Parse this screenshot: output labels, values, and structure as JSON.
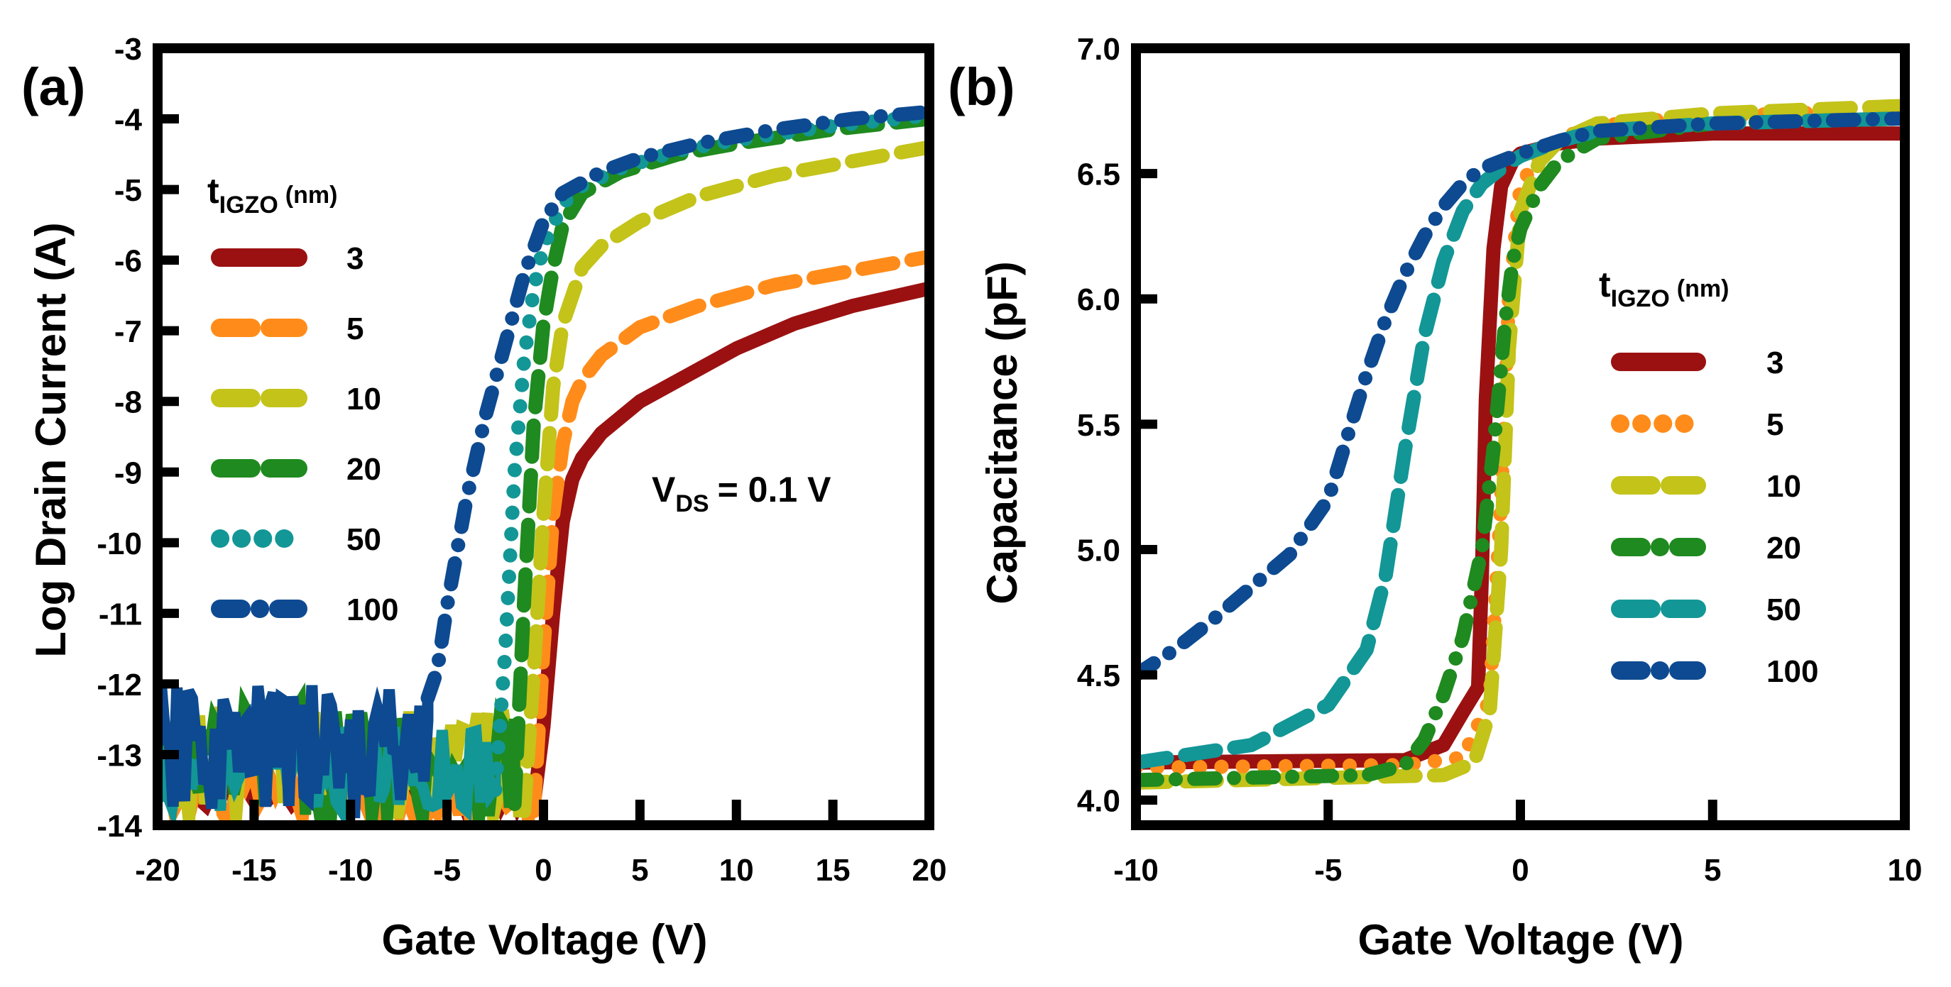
{
  "chart_data": [
    {
      "type": "line",
      "panel_label": "(a)",
      "xlabel": "Gate Voltage (V)",
      "ylabel": "Log Drain Current (A)",
      "xlim": [
        -20,
        20
      ],
      "ylim": [
        -14,
        -3
      ],
      "xticks": [
        "-20",
        "-15",
        "-10",
        "-5",
        "0",
        "5",
        "10",
        "15",
        "20"
      ],
      "yticks": [
        "-3",
        "-4",
        "-5",
        "-6",
        "-7",
        "-8",
        "-9",
        "-10",
        "-11",
        "-12",
        "-13",
        "-14"
      ],
      "legend_title": {
        "main": "t",
        "sub": "IGZO",
        "unit": "(nm)"
      },
      "legend_position": "top-left",
      "annotation": {
        "main": "V",
        "sub": "DS",
        "rest": "= 0.1 V"
      },
      "series": [
        {
          "name": "3",
          "color": "#9b1111",
          "style": "solid",
          "noise": [
            -13.75,
            -13.4
          ],
          "x": [
            -0.5,
            0,
            0.5,
            1,
            1.5,
            2,
            3,
            5,
            7,
            10,
            13,
            16,
            20
          ],
          "y": [
            -13.7,
            -12.6,
            -11.0,
            -9.7,
            -9.1,
            -8.8,
            -8.45,
            -8.0,
            -7.7,
            -7.25,
            -6.9,
            -6.65,
            -6.4
          ]
        },
        {
          "name": "5",
          "color": "#ff8c1a",
          "style": "dash",
          "noise": [
            -14.0,
            -13.3
          ],
          "x": [
            -0.5,
            0,
            0.5,
            1,
            1.5,
            2,
            3,
            5,
            8,
            12,
            16,
            20
          ],
          "y": [
            -13.8,
            -11.5,
            -9.6,
            -8.6,
            -8.0,
            -7.7,
            -7.35,
            -6.95,
            -6.65,
            -6.35,
            -6.15,
            -5.95
          ]
        },
        {
          "name": "10",
          "color": "#c3c31a",
          "style": "dash",
          "noise": [
            -14.0,
            -12.3
          ],
          "x": [
            -1,
            -0.5,
            0,
            0.5,
            1,
            2,
            3,
            5,
            8,
            12,
            16,
            20
          ],
          "y": [
            -13.8,
            -11.8,
            -9.6,
            -7.8,
            -6.9,
            -6.1,
            -5.8,
            -5.45,
            -5.1,
            -4.8,
            -4.6,
            -4.4
          ]
        },
        {
          "name": "20",
          "color": "#1f8a1f",
          "style": "dash",
          "noise": [
            -14.0,
            -12.2
          ],
          "x": [
            -1.5,
            -1,
            -0.5,
            0,
            0.5,
            1,
            2,
            4,
            7,
            10,
            15,
            20
          ],
          "y": [
            -13.7,
            -10.8,
            -8.3,
            -6.9,
            -6.1,
            -5.5,
            -5.05,
            -4.75,
            -4.5,
            -4.35,
            -4.15,
            -4.0
          ]
        },
        {
          "name": "50",
          "color": "#139696",
          "style": "dot",
          "noise": [
            -13.8,
            -12.6
          ],
          "x": [
            -2.5,
            -2,
            -1.5,
            -1,
            -0.5,
            0,
            1,
            2,
            4,
            7,
            10,
            15,
            20
          ],
          "y": [
            -13.5,
            -11.6,
            -9.0,
            -7.4,
            -6.4,
            -5.8,
            -5.2,
            -4.95,
            -4.7,
            -4.45,
            -4.3,
            -4.1,
            -3.95
          ]
        },
        {
          "name": "100",
          "color": "#0d4a91",
          "style": "dashdot",
          "noise": [
            -13.9,
            -12.0
          ],
          "x": [
            -6,
            -5.5,
            -5,
            -4,
            -3,
            -2,
            -1,
            0,
            1,
            3,
            5,
            8,
            12,
            16,
            20
          ],
          "y": [
            -12.2,
            -11.8,
            -10.9,
            -9.4,
            -8.2,
            -7.2,
            -6.2,
            -5.45,
            -5.05,
            -4.75,
            -4.55,
            -4.35,
            -4.15,
            -4.0,
            -3.9
          ]
        }
      ]
    },
    {
      "type": "line",
      "panel_label": "(b)",
      "xlabel": "Gate Voltage (V)",
      "ylabel": "Capacitance (pF)",
      "xlim": [
        -10,
        10
      ],
      "ylim": [
        3.9,
        7.0
      ],
      "xticks": [
        "-10",
        "-5",
        "0",
        "5",
        "10"
      ],
      "yticks": [
        "7.0",
        "6.5",
        "6.0",
        "5.5",
        "5.0",
        "4.5",
        "4.0"
      ],
      "legend_title": {
        "main": "t",
        "sub": "IGZO",
        "unit": "(nm)"
      },
      "legend_position": "center-right",
      "series": [
        {
          "name": "3",
          "color": "#9b1111",
          "style": "solid",
          "x": [
            -10,
            -3,
            -2,
            -1.5,
            -1.1,
            -1.0,
            -0.9,
            -0.7,
            -0.5,
            -0.2,
            0,
            1,
            2,
            5,
            10
          ],
          "y": [
            4.15,
            4.16,
            4.22,
            4.35,
            4.45,
            4.9,
            5.6,
            6.2,
            6.45,
            6.55,
            6.58,
            6.62,
            6.64,
            6.66,
            6.66
          ]
        },
        {
          "name": "5",
          "color": "#ff8c1a",
          "style": "dot",
          "x": [
            -10,
            -3,
            -1.5,
            -0.8,
            -0.5,
            -0.3,
            0,
            0.5,
            1,
            2,
            4,
            7,
            10
          ],
          "y": [
            4.13,
            4.14,
            4.17,
            4.4,
            5.2,
            6.0,
            6.45,
            6.58,
            6.64,
            6.69,
            6.72,
            6.74,
            6.75
          ]
        },
        {
          "name": "10",
          "color": "#c3c31a",
          "style": "dash",
          "x": [
            -10,
            -2,
            -1.2,
            -0.8,
            -0.5,
            -0.3,
            0,
            0.5,
            1,
            2,
            5,
            10
          ],
          "y": [
            4.07,
            4.1,
            4.15,
            4.35,
            5.0,
            5.8,
            6.35,
            6.55,
            6.63,
            6.7,
            6.74,
            6.77
          ]
        },
        {
          "name": "20",
          "color": "#1f8a1f",
          "style": "dashdot",
          "x": [
            -10,
            -4,
            -3,
            -2.5,
            -2,
            -1.5,
            -1,
            -0.7,
            -0.4,
            -0.2,
            0,
            0.5,
            1,
            2,
            5,
            10
          ],
          "y": [
            4.08,
            4.1,
            4.14,
            4.24,
            4.42,
            4.65,
            5.0,
            5.4,
            5.9,
            6.15,
            6.28,
            6.45,
            6.55,
            6.64,
            6.7,
            6.72
          ]
        },
        {
          "name": "50",
          "color": "#139696",
          "style": "dash",
          "x": [
            -10,
            -7,
            -5,
            -4,
            -3.5,
            -3,
            -2.5,
            -2,
            -1.5,
            -1,
            -0.5,
            0,
            1,
            2,
            5,
            10
          ],
          "y": [
            4.15,
            4.22,
            4.38,
            4.6,
            4.9,
            5.4,
            5.85,
            6.15,
            6.35,
            6.46,
            6.52,
            6.57,
            6.63,
            6.67,
            6.7,
            6.72
          ]
        },
        {
          "name": "100",
          "color": "#0d4a91",
          "style": "dashdot",
          "x": [
            -10,
            -9,
            -8,
            -7,
            -6,
            -5,
            -4.5,
            -4,
            -3.5,
            -3,
            -2.5,
            -2,
            -1.5,
            -1,
            0,
            1,
            2,
            5,
            10
          ],
          "y": [
            4.5,
            4.6,
            4.72,
            4.85,
            4.98,
            5.2,
            5.45,
            5.7,
            5.92,
            6.1,
            6.25,
            6.37,
            6.46,
            6.52,
            6.58,
            6.63,
            6.67,
            6.7,
            6.72
          ]
        }
      ]
    }
  ]
}
